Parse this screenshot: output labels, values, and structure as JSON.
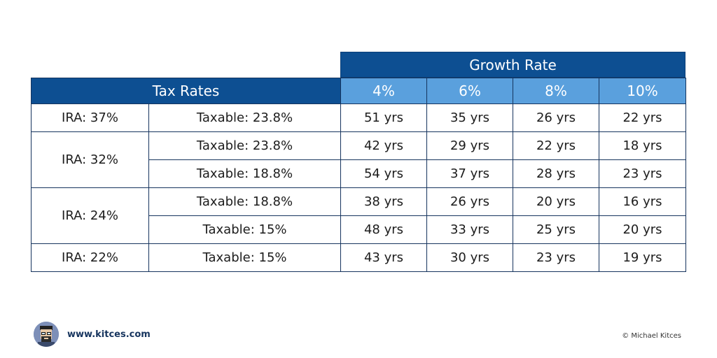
{
  "chart_data": {
    "type": "table",
    "column_group_label": "Growth Rate",
    "row_group_label": "Tax Rates",
    "growth_rates": [
      "4%",
      "6%",
      "8%",
      "10%"
    ],
    "rows": [
      {
        "ira": "IRA: 37%",
        "taxable": "Taxable: 23.8%",
        "values": [
          "51 yrs",
          "35 yrs",
          "26 yrs",
          "22 yrs"
        ]
      },
      {
        "ira": "IRA: 32%",
        "taxable": "Taxable: 23.8%",
        "values": [
          "42 yrs",
          "29 yrs",
          "22 yrs",
          "18 yrs"
        ]
      },
      {
        "ira": "IRA: 32%",
        "taxable": "Taxable: 18.8%",
        "values": [
          "54 yrs",
          "37 yrs",
          "28 yrs",
          "23 yrs"
        ]
      },
      {
        "ira": "IRA: 24%",
        "taxable": "Taxable: 18.8%",
        "values": [
          "38 yrs",
          "26 yrs",
          "20 yrs",
          "16 yrs"
        ]
      },
      {
        "ira": "IRA: 24%",
        "taxable": "Taxable: 15%",
        "values": [
          "48 yrs",
          "33 yrs",
          "25 yrs",
          "20 yrs"
        ]
      },
      {
        "ira": "IRA: 22%",
        "taxable": "Taxable: 15%",
        "values": [
          "43 yrs",
          "30 yrs",
          "23 yrs",
          "19 yrs"
        ]
      }
    ],
    "ira_groups": [
      {
        "label": "IRA: 37%",
        "rows": 1
      },
      {
        "label": "IRA: 32%",
        "rows": 2
      },
      {
        "label": "IRA: 24%",
        "rows": 2
      },
      {
        "label": "IRA: 22%",
        "rows": 1
      }
    ]
  },
  "footer": {
    "url": "www.kitces.com",
    "copyright": "© Michael Kitces"
  },
  "colors": {
    "header_dark": "#0d4f92",
    "header_light": "#5aa0dd",
    "border": "#16345e"
  }
}
